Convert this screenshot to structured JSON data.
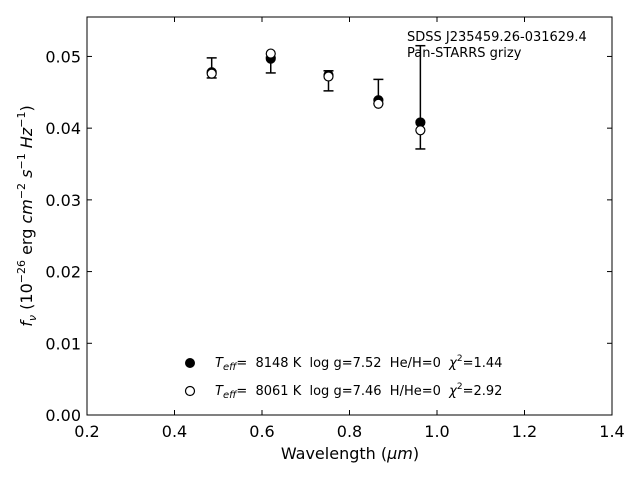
{
  "chart_data": {
    "type": "scatter",
    "xlabel_main": "Wavelength (",
    "xlabel_unit": "μm",
    "xlabel_close": ")",
    "ylabel": "f_ν (10^−26 erg cm^−2 s^−1 Hz^−1)",
    "annotations": [
      "SDSS J235459.26-031629.4",
      "Pan-STARRS grizy"
    ],
    "xlim": [
      0.2,
      1.4
    ],
    "ylim": [
      0.0,
      0.0555
    ],
    "xticks": [
      0.2,
      0.4,
      0.6,
      0.8,
      1.0,
      1.2,
      1.4
    ],
    "xtick_labels": [
      "0.2",
      "0.4",
      "0.6",
      "0.8",
      "1.0",
      "1.2",
      "1.4"
    ],
    "yticks": [
      0.0,
      0.01,
      0.02,
      0.03,
      0.04,
      0.05
    ],
    "ytick_labels": [
      "0.00",
      "0.01",
      "0.02",
      "0.03",
      "0.04",
      "0.05"
    ],
    "grid": false,
    "legend_position": "bottom-center",
    "series": [
      {
        "marker": "filled-circle",
        "legend": {
          "teff_label": "T",
          "teff_sub": "eff",
          "teff_value": "=  8148 K  log g=7.52  He/H=0  ",
          "chi_label": "χ",
          "chi_sup": "2",
          "chi_value": "=1.44"
        },
        "x": [
          0.485,
          0.62,
          0.752,
          0.866,
          0.962
        ],
        "y": [
          0.0478,
          0.0497,
          0.0474,
          0.0439,
          0.0408
        ]
      },
      {
        "marker": "open-circle",
        "legend": {
          "teff_label": "T",
          "teff_sub": "eff",
          "teff_value": "=  8061 K  log g=7.46  H/He=0  ",
          "chi_label": "χ",
          "chi_sup": "2",
          "chi_value": "=2.92"
        },
        "x": [
          0.485,
          0.62,
          0.752,
          0.866,
          0.962
        ],
        "y": [
          0.0476,
          0.0504,
          0.0472,
          0.0434,
          0.0397
        ]
      }
    ],
    "observed_errorbars": {
      "x": [
        0.485,
        0.62,
        0.752,
        0.866,
        0.962
      ],
      "y": [
        0.0484,
        0.0488,
        0.0466,
        0.0451,
        0.0443
      ],
      "err": [
        0.0014,
        0.0011,
        0.0014,
        0.0017,
        0.0072
      ]
    }
  }
}
